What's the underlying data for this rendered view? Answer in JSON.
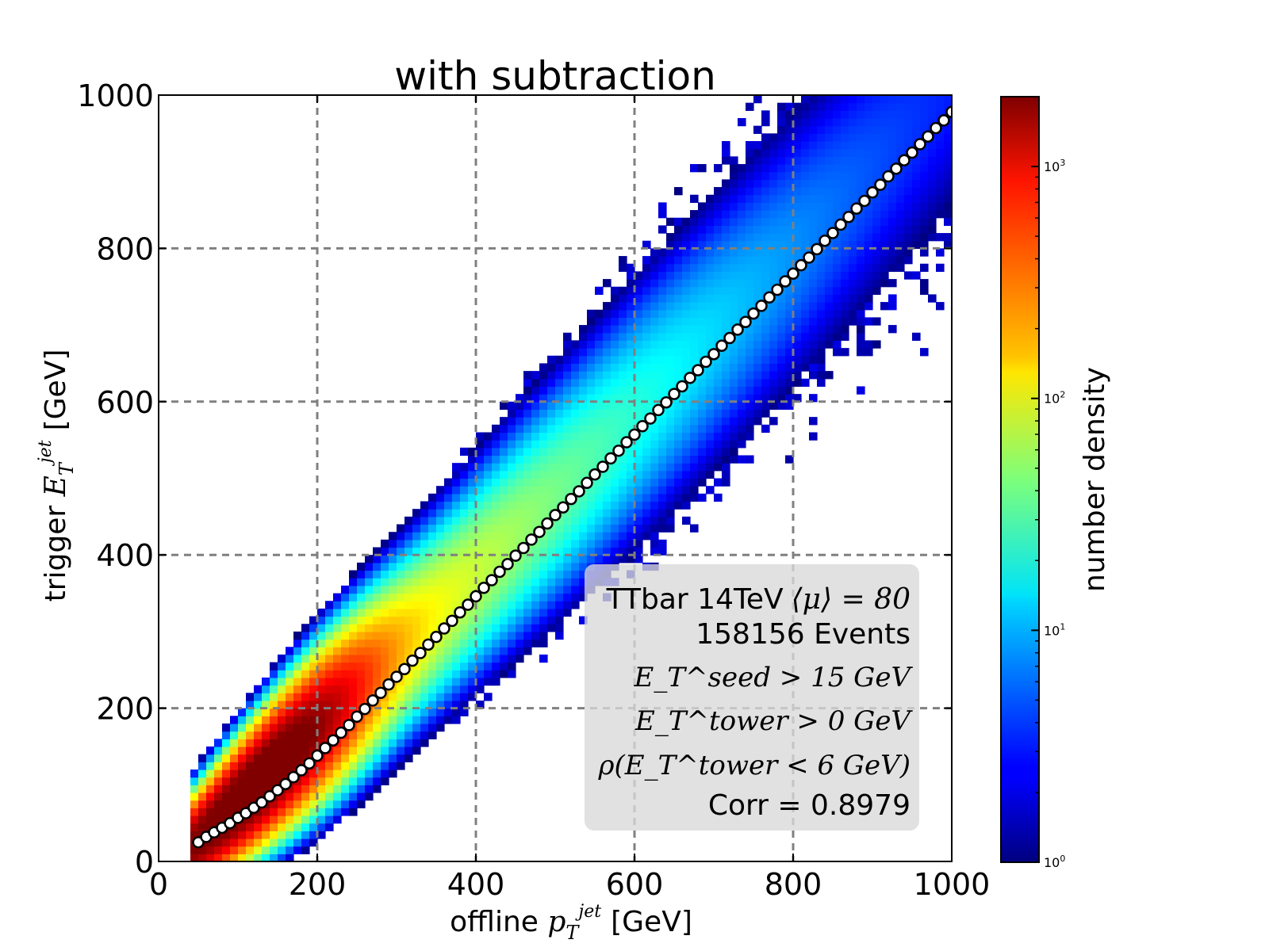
{
  "chart_data": {
    "type": "heatmap",
    "title": "with subtraction",
    "xlabel": "offline p_T^jet  [GeV]",
    "xlabel_parts": {
      "prefix": "offline ",
      "var": "p",
      "sub": "T",
      "sup": "jet",
      "unit": "[GeV]"
    },
    "ylabel": "trigger E_T^jet  [GeV]",
    "ylabel_parts": {
      "prefix": "trigger ",
      "var": "E",
      "sub": "T",
      "sup": "jet",
      "unit": "[GeV]"
    },
    "xlim": [
      0,
      1000
    ],
    "ylim": [
      0,
      1000
    ],
    "xticks": [
      "0",
      "200",
      "400",
      "600",
      "800",
      "1000"
    ],
    "yticks": [
      "0",
      "200",
      "400",
      "600",
      "800",
      "1000"
    ],
    "tick_values": [
      0,
      200,
      400,
      600,
      800,
      1000
    ],
    "grid": true,
    "colorbar": {
      "label": "number density",
      "scale": "log",
      "range": [
        1,
        2000
      ],
      "ticks": [
        {
          "value": 1,
          "base": "10",
          "exp": "0"
        },
        {
          "value": 10,
          "base": "10",
          "exp": "1"
        },
        {
          "value": 100,
          "base": "10",
          "exp": "2"
        },
        {
          "value": 1000,
          "base": "10",
          "exp": "3"
        }
      ]
    },
    "profile_points": {
      "name": "mean trigger E_T per offline p_T bin",
      "x": [
        50,
        60,
        70,
        80,
        90,
        100,
        110,
        120,
        130,
        140,
        150,
        160,
        170,
        180,
        190,
        200,
        210,
        220,
        230,
        240,
        250,
        260,
        270,
        280,
        290,
        300,
        310,
        320,
        330,
        340,
        350,
        360,
        370,
        380,
        390,
        400,
        410,
        420,
        430,
        440,
        450,
        460,
        470,
        480,
        490,
        500,
        510,
        520,
        530,
        540,
        550,
        560,
        570,
        580,
        590,
        600,
        610,
        620,
        630,
        640,
        650,
        660,
        670,
        680,
        690,
        700,
        710,
        720,
        730,
        740,
        750,
        760,
        770,
        780,
        790,
        800,
        810,
        820,
        830,
        840,
        850,
        860,
        870,
        880,
        890,
        900,
        910,
        920,
        930,
        940,
        950,
        960,
        970,
        980,
        990,
        1000
      ],
      "y": [
        25,
        32,
        38,
        44,
        50,
        57,
        63,
        70,
        77,
        85,
        93,
        101,
        110,
        119,
        128,
        138,
        148,
        158,
        168,
        178,
        189,
        199,
        210,
        220,
        231,
        241,
        251,
        262,
        272,
        283,
        293,
        304,
        314,
        325,
        335,
        346,
        357,
        367,
        378,
        388,
        399,
        409,
        420,
        430,
        441,
        452,
        462,
        473,
        483,
        494,
        505,
        515,
        526,
        536,
        547,
        557,
        568,
        578,
        589,
        599,
        610,
        620,
        631,
        641,
        652,
        662,
        673,
        683,
        694,
        704,
        715,
        725,
        736,
        746,
        757,
        767,
        778,
        788,
        799,
        810,
        820,
        831,
        841,
        852,
        862,
        873,
        883,
        894,
        904,
        915,
        925,
        936,
        946,
        957,
        967,
        978
      ]
    },
    "legend_box": {
      "position": "lower-right",
      "line1": "TTbar 14TeV",
      "line1_mu": "⟨μ⟩ = 80",
      "line2": "158156 Events",
      "line3": "E_T^seed > 15 GeV",
      "line4": "E_T^tower > 0 GeV",
      "line5": "ρ(E_T^tower < 6 GeV)",
      "line6": "Corr = 0.8979"
    }
  }
}
